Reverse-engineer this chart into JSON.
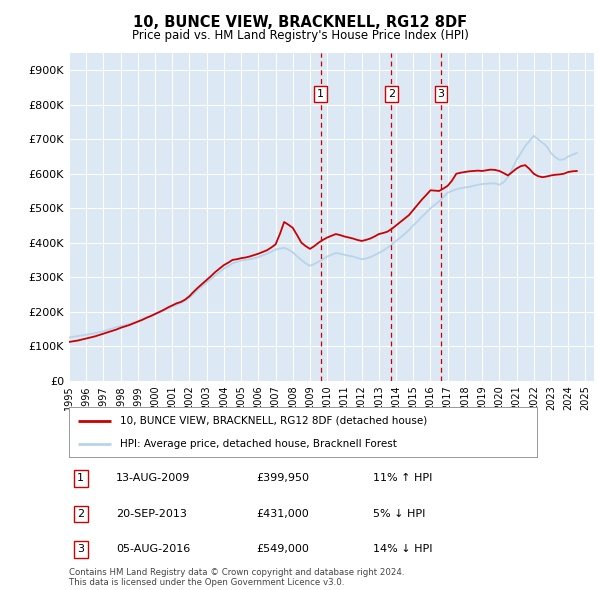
{
  "title": "10, BUNCE VIEW, BRACKNELL, RG12 8DF",
  "subtitle": "Price paid vs. HM Land Registry's House Price Index (HPI)",
  "ylabel_ticks": [
    "£0",
    "£100K",
    "£200K",
    "£300K",
    "£400K",
    "£500K",
    "£600K",
    "£700K",
    "£800K",
    "£900K"
  ],
  "ytick_values": [
    0,
    100000,
    200000,
    300000,
    400000,
    500000,
    600000,
    700000,
    800000,
    900000
  ],
  "ylim": [
    0,
    950000
  ],
  "xlim_start": 1995.0,
  "xlim_end": 2025.5,
  "hpi_label": "HPI: Average price, detached house, Bracknell Forest",
  "price_label": "10, BUNCE VIEW, BRACKNELL, RG12 8DF (detached house)",
  "hpi_color": "#b8d4ea",
  "price_color": "#cc0000",
  "plot_bg_color": "#dce9f5",
  "grid_color": "#ffffff",
  "sales": [
    {
      "num": 1,
      "date": "13-AUG-2009",
      "price": 399950,
      "pct": "11%",
      "dir": "↑",
      "year": 2009.62
    },
    {
      "num": 2,
      "date": "20-SEP-2013",
      "price": 431000,
      "pct": "5%",
      "dir": "↓",
      "year": 2013.72
    },
    {
      "num": 3,
      "date": "05-AUG-2016",
      "price": 549000,
      "pct": "14%",
      "dir": "↓",
      "year": 2016.6
    }
  ],
  "hpi_data": {
    "years": [
      1995.0,
      1995.25,
      1995.5,
      1995.75,
      1996.0,
      1996.25,
      1996.5,
      1996.75,
      1997.0,
      1997.25,
      1997.5,
      1997.75,
      1998.0,
      1998.25,
      1998.5,
      1998.75,
      1999.0,
      1999.25,
      1999.5,
      1999.75,
      2000.0,
      2000.25,
      2000.5,
      2000.75,
      2001.0,
      2001.25,
      2001.5,
      2001.75,
      2002.0,
      2002.25,
      2002.5,
      2002.75,
      2003.0,
      2003.25,
      2003.5,
      2003.75,
      2004.0,
      2004.25,
      2004.5,
      2004.75,
      2005.0,
      2005.25,
      2005.5,
      2005.75,
      2006.0,
      2006.25,
      2006.5,
      2006.75,
      2007.0,
      2007.25,
      2007.5,
      2007.75,
      2008.0,
      2008.25,
      2008.5,
      2008.75,
      2009.0,
      2009.25,
      2009.5,
      2009.75,
      2010.0,
      2010.25,
      2010.5,
      2010.75,
      2011.0,
      2011.25,
      2011.5,
      2011.75,
      2012.0,
      2012.25,
      2012.5,
      2012.75,
      2013.0,
      2013.25,
      2013.5,
      2013.75,
      2014.0,
      2014.25,
      2014.5,
      2014.75,
      2015.0,
      2015.25,
      2015.5,
      2015.75,
      2016.0,
      2016.25,
      2016.5,
      2016.75,
      2017.0,
      2017.25,
      2017.5,
      2017.75,
      2018.0,
      2018.25,
      2018.5,
      2018.75,
      2019.0,
      2019.25,
      2019.5,
      2019.75,
      2020.0,
      2020.25,
      2020.5,
      2020.75,
      2021.0,
      2021.25,
      2021.5,
      2021.75,
      2022.0,
      2022.25,
      2022.5,
      2022.75,
      2023.0,
      2023.25,
      2023.5,
      2023.75,
      2024.0,
      2024.25,
      2024.5
    ],
    "values": [
      125000,
      127000,
      129000,
      131000,
      133000,
      135000,
      137000,
      140000,
      143000,
      147000,
      151000,
      155000,
      158000,
      161000,
      164000,
      168000,
      172000,
      177000,
      183000,
      188000,
      193000,
      198000,
      203000,
      209000,
      215000,
      220000,
      225000,
      232000,
      240000,
      252000,
      265000,
      275000,
      285000,
      295000,
      305000,
      315000,
      325000,
      332000,
      340000,
      344000,
      348000,
      350000,
      352000,
      355000,
      358000,
      363000,
      368000,
      374000,
      380000,
      383000,
      385000,
      380000,
      372000,
      360000,
      350000,
      340000,
      333000,
      338000,
      345000,
      352000,
      360000,
      365000,
      370000,
      368000,
      365000,
      362000,
      360000,
      356000,
      352000,
      354000,
      358000,
      364000,
      370000,
      377000,
      385000,
      395000,
      405000,
      415000,
      425000,
      437000,
      450000,
      462000,
      475000,
      487000,
      500000,
      510000,
      520000,
      532000,
      545000,
      550000,
      555000,
      558000,
      560000,
      562000,
      565000,
      568000,
      570000,
      571000,
      572000,
      572000,
      568000,
      575000,
      590000,
      615000,
      640000,
      660000,
      680000,
      695000,
      710000,
      700000,
      690000,
      680000,
      660000,
      648000,
      640000,
      642000,
      650000,
      655000,
      660000
    ]
  },
  "price_data": {
    "years": [
      1995.0,
      1995.25,
      1995.5,
      1995.75,
      1996.0,
      1996.25,
      1996.5,
      1996.75,
      1997.0,
      1997.25,
      1997.5,
      1997.75,
      1998.0,
      1998.25,
      1998.5,
      1998.75,
      1999.0,
      1999.25,
      1999.5,
      1999.75,
      2000.0,
      2000.25,
      2000.5,
      2000.75,
      2001.0,
      2001.25,
      2001.5,
      2001.75,
      2002.0,
      2002.25,
      2002.5,
      2002.75,
      2003.0,
      2003.25,
      2003.5,
      2003.75,
      2004.0,
      2004.25,
      2004.5,
      2004.75,
      2005.0,
      2005.25,
      2005.5,
      2005.75,
      2006.0,
      2006.25,
      2006.5,
      2006.75,
      2007.0,
      2007.25,
      2007.5,
      2007.75,
      2008.0,
      2008.25,
      2008.5,
      2008.75,
      2009.0,
      2009.25,
      2009.5,
      2009.75,
      2010.0,
      2010.25,
      2010.5,
      2010.75,
      2011.0,
      2011.25,
      2011.5,
      2011.75,
      2012.0,
      2012.25,
      2012.5,
      2012.75,
      2013.0,
      2013.25,
      2013.5,
      2013.75,
      2014.0,
      2014.25,
      2014.5,
      2014.75,
      2015.0,
      2015.25,
      2015.5,
      2015.75,
      2016.0,
      2016.25,
      2016.5,
      2016.75,
      2017.0,
      2017.25,
      2017.5,
      2017.75,
      2018.0,
      2018.25,
      2018.5,
      2018.75,
      2019.0,
      2019.25,
      2019.5,
      2019.75,
      2020.0,
      2020.25,
      2020.5,
      2020.75,
      2021.0,
      2021.25,
      2021.5,
      2021.75,
      2022.0,
      2022.25,
      2022.5,
      2022.75,
      2023.0,
      2023.25,
      2023.5,
      2023.75,
      2024.0,
      2024.25,
      2024.5
    ],
    "values": [
      112000,
      114000,
      116000,
      119000,
      122000,
      125000,
      128000,
      132000,
      136000,
      140000,
      144000,
      148000,
      153000,
      157000,
      161000,
      166000,
      171000,
      176000,
      182000,
      187000,
      193000,
      199000,
      205000,
      212000,
      218000,
      224000,
      228000,
      235000,
      245000,
      258000,
      270000,
      281000,
      292000,
      303000,
      315000,
      325000,
      335000,
      342000,
      350000,
      352000,
      355000,
      357000,
      360000,
      364000,
      368000,
      373000,
      378000,
      386000,
      395000,
      425000,
      460000,
      452000,
      443000,
      422000,
      400000,
      390000,
      382000,
      390000,
      400000,
      408000,
      415000,
      420000,
      425000,
      422000,
      418000,
      415000,
      412000,
      408000,
      405000,
      408000,
      412000,
      418000,
      425000,
      428000,
      432000,
      440000,
      450000,
      460000,
      470000,
      480000,
      495000,
      510000,
      525000,
      538000,
      552000,
      551000,
      550000,
      557000,
      565000,
      580000,
      600000,
      603000,
      605000,
      607000,
      608000,
      609000,
      608000,
      610000,
      612000,
      611000,
      608000,
      602000,
      595000,
      605000,
      615000,
      622000,
      625000,
      614000,
      600000,
      593000,
      590000,
      592000,
      595000,
      597000,
      598000,
      600000,
      605000,
      607000,
      608000
    ]
  },
  "footer_text": "Contains HM Land Registry data © Crown copyright and database right 2024.\nThis data is licensed under the Open Government Licence v3.0.",
  "sale_vline_color": "#cc0000",
  "table_border_color": "#cc0000"
}
